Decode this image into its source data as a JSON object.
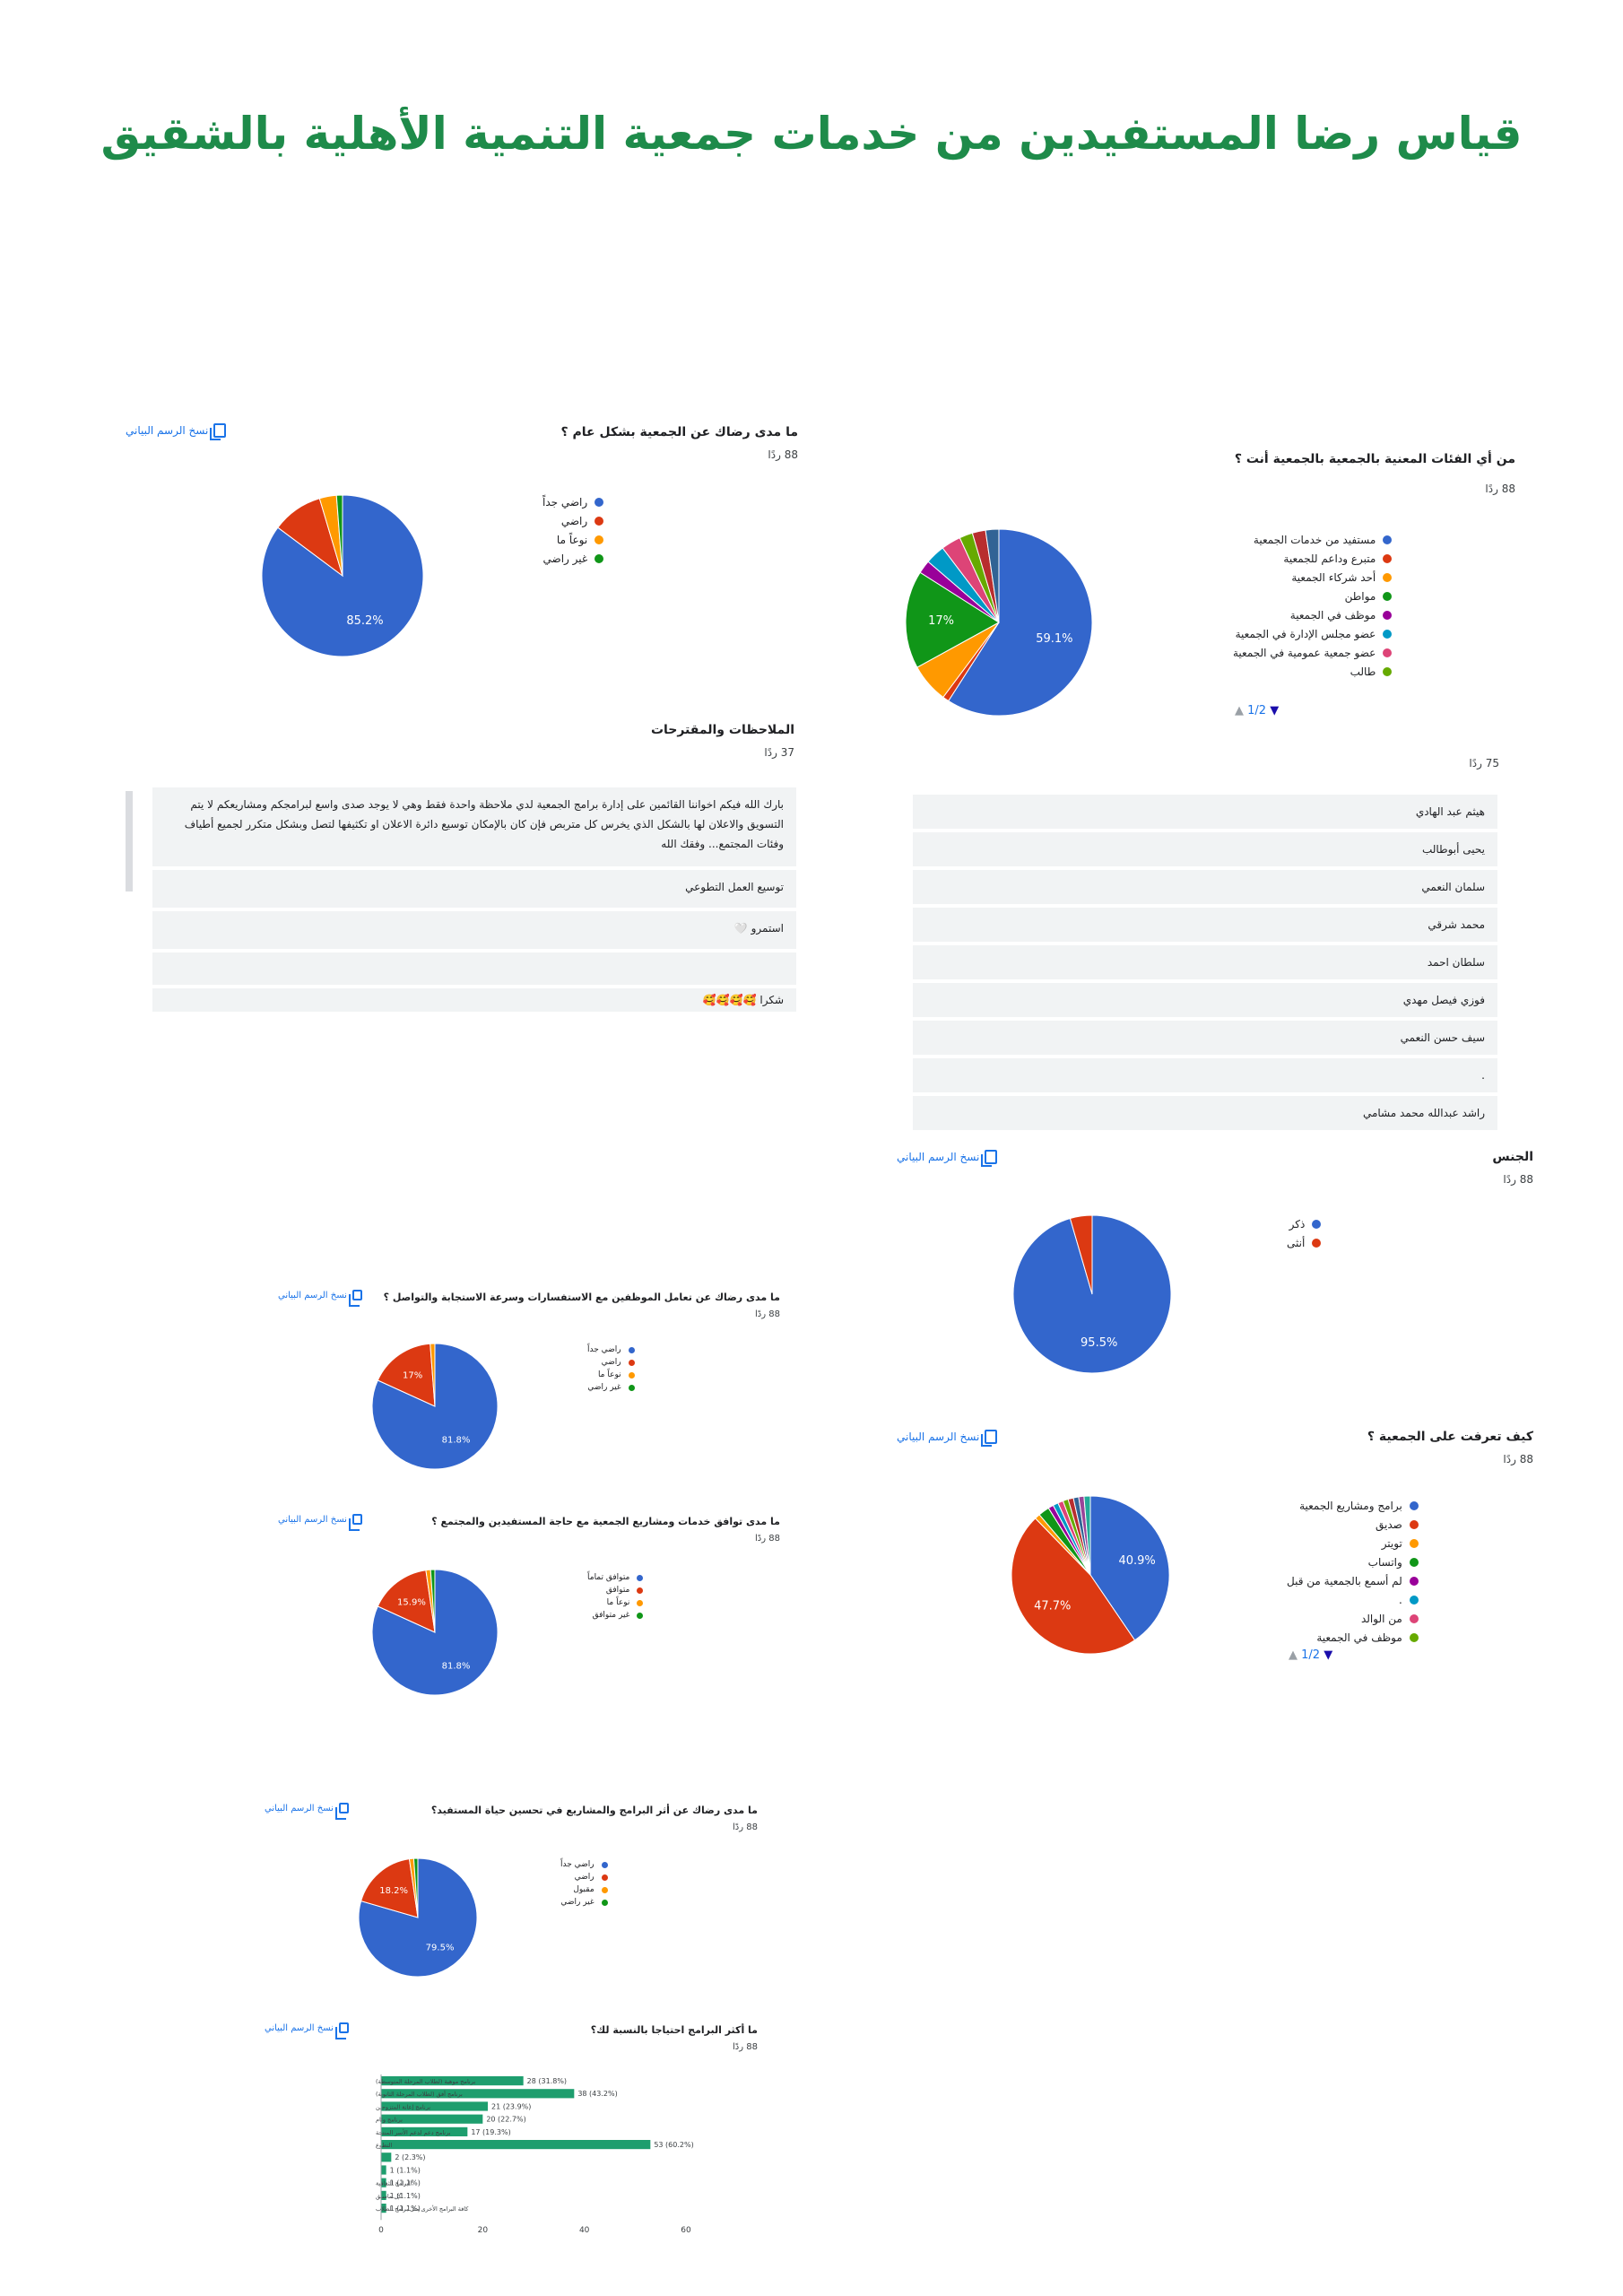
{
  "page": {
    "title": "قياس رضا المستفيدين من خدمات جمعية التنمية الأهلية بالشقيق",
    "copy_label": "نسخ الرسم البياني",
    "pager": "1/2"
  },
  "q1": {
    "question": "ما مدى رضاك عن الجمعية بشكل عام ؟",
    "responses": "88 ردًا",
    "chart_data": {
      "type": "pie",
      "categories": [
        "راضي جداً",
        "راضي",
        "نوعاً ما",
        "غير راضي"
      ],
      "values": [
        85.2,
        10.2,
        3.4,
        1.2
      ],
      "colors": [
        "#3366cc",
        "#dc3912",
        "#ff9900",
        "#109618"
      ],
      "labels": [
        "85.2%",
        "",
        "",
        ""
      ],
      "legend": "right"
    }
  },
  "q2": {
    "question": "من أي الفئات المعنية بالجمعية بالجمعية أنت ؟",
    "responses": "88 ردًا",
    "chart_data": {
      "type": "pie",
      "categories": [
        "مستفيد من خدمات الجمعية",
        "متبرع وداعم للجمعية",
        "أحد شركاء الجمعية",
        "مواطن",
        "موظف في الجمعية",
        "عضو مجلس الإدارة في الجمعية",
        "عضو جمعية عمومية في الجمعية",
        "طالب",
        "",
        ""
      ],
      "values": [
        59.1,
        1.1,
        6.8,
        17,
        2.3,
        3.4,
        3.4,
        2.3,
        2.3,
        2.3
      ],
      "colors": [
        "#3366cc",
        "#dc3912",
        "#ff9900",
        "#109618",
        "#990099",
        "#0099c6",
        "#dd4477",
        "#66aa00",
        "#b82e2e",
        "#316395"
      ],
      "labels": [
        "59.1%",
        "",
        "",
        "17%",
        "",
        "",
        "",
        "",
        "",
        ""
      ],
      "legend": "right"
    }
  },
  "q3": {
    "question": "الملاحظات والمقترحات",
    "responses": "37 ردًا",
    "answers": [
      "بارك الله فيكم اخواننا القائمين على إدارة برامج الجمعية لدي ملاحظة واحدة فقط وهي لا يوجد صدى واسع لبرامجكم ومشاريعكم لا يتم التسويق والاعلان لها بالشكل الذي يخرس كل متربص فإن كان بالإمكان توسيع دائرة الاعلان او تكثيفها لتصل وبشكل متكرر لجميع أطياف وفئات المجتمع... وفقك الله",
      "توسيع العمل التطوعي",
      "استمرو 🤍",
      "",
      "شكرا 🥰🥰🥰🥰"
    ]
  },
  "q4": {
    "responses": "75 ردًا",
    "answers": [
      "هيثم عبد الهادي",
      "يحيى أبوطالب",
      "سلمان النعمي",
      "محمد شرقي",
      "سلطان احمد",
      "فوزي فيصل مهدي",
      "سيف حسن النعمي",
      ".",
      "راشد عبدالله محمد مشامي"
    ]
  },
  "q5": {
    "question": "الجنس",
    "responses": "88 ردًا",
    "chart_data": {
      "type": "pie",
      "categories": [
        "ذكر",
        "أنثى"
      ],
      "values": [
        95.5,
        4.5
      ],
      "colors": [
        "#3366cc",
        "#dc3912"
      ],
      "labels": [
        "95.5%",
        ""
      ],
      "legend": "right"
    }
  },
  "q6": {
    "question": "ما مدى رضاك عن تعامل الموظفين مع الاستفسارات وسرعة الاستجابة والتواصل ؟",
    "responses": "88 ردًا",
    "chart_data": {
      "type": "pie",
      "categories": [
        "راضي جداً",
        "راضي",
        "نوعاً ما",
        "غير راضي"
      ],
      "values": [
        81.8,
        17,
        1.2,
        0
      ],
      "colors": [
        "#3366cc",
        "#dc3912",
        "#ff9900",
        "#109618"
      ],
      "labels": [
        "81.8%",
        "17%",
        "",
        ""
      ],
      "legend": "right"
    }
  },
  "q7": {
    "question": "كيف تعرفت على الجمعية ؟",
    "responses": "88 ردًا",
    "chart_data": {
      "type": "pie",
      "categories": [
        "برامج ومشاريع الجمعية",
        "صديق",
        "تويتر",
        "واتساب",
        "لم أسمع بالجمعية من قبل",
        ".",
        "من الوالد",
        "موظف في الجمعية",
        "",
        "",
        "",
        ""
      ],
      "values": [
        40.9,
        47.7,
        1.1,
        2.3,
        1.1,
        1.1,
        1.1,
        1.1,
        1.1,
        1.1,
        1.1,
        1.3
      ],
      "colors": [
        "#3366cc",
        "#dc3912",
        "#ff9900",
        "#109618",
        "#990099",
        "#0099c6",
        "#dd4477",
        "#66aa00",
        "#b82e2e",
        "#316395",
        "#994499",
        "#22aa99"
      ],
      "labels": [
        "40.9%",
        "47.7%",
        "",
        "",
        "",
        "",
        "",
        "",
        "",
        "",
        "",
        ""
      ],
      "legend": "right"
    }
  },
  "q8": {
    "question": "ما مدى توافق خدمات ومشاريع الجمعية مع حاجة المستفيدين والمجتمع ؟",
    "responses": "88 ردًا",
    "chart_data": {
      "type": "pie",
      "categories": [
        "متوافق تماماً",
        "متوافق",
        "نوعاً ما",
        "غير متوافق"
      ],
      "values": [
        81.8,
        15.9,
        1.2,
        1.1
      ],
      "colors": [
        "#3366cc",
        "#dc3912",
        "#ff9900",
        "#109618"
      ],
      "labels": [
        "81.8%",
        "15.9%",
        "",
        ""
      ],
      "legend": "right"
    }
  },
  "q9": {
    "question": "ما مدى رضاك عن أثر البرامج والمشاريع في تحسين حياة المستفيد؟",
    "responses": "88 ردًا",
    "chart_data": {
      "type": "pie",
      "categories": [
        "راضي جداً",
        "راضي",
        "مقبول",
        "غير راضي"
      ],
      "values": [
        79.5,
        18.2,
        1.2,
        1.1
      ],
      "colors": [
        "#3366cc",
        "#dc3912",
        "#ff9900",
        "#109618"
      ],
      "labels": [
        "79.5%",
        "18.2%",
        "",
        ""
      ],
      "legend": "right"
    }
  },
  "q10": {
    "question": "ما أكثر البرامج احتياجا بالنسبة لك؟",
    "responses": "88 ردًا",
    "chart_data": {
      "type": "bar",
      "orientation": "horizontal",
      "categories": [
        "برنامج موهبة (لطلاب المرحلة المتوسطة)",
        "برنامج أفق (لطلاب المرحلة الثانوية)",
        "برنامج إعانة المتزوجين",
        "برنامج وئام",
        "برنامج دعم لدعم الأسر المنتجة",
        "التطوع",
        "",
        "",
        "البرامج الثقافية",
        "كل ماسبق",
        "كافة البرامج الأخرى مثل برامج الطلاب"
      ],
      "values": [
        28,
        38,
        21,
        20,
        17,
        53,
        2,
        1,
        1,
        1,
        1
      ],
      "value_labels": [
        "28 (31.8%)",
        "38 (43.2%)",
        "21 (23.9%)",
        "20 (22.7%)",
        "17 (19.3%)",
        "53 (60.2%)",
        "2 (2.3%)",
        "1 (1.1%)",
        "1 (1.1%)",
        "1 (1.1%)",
        "1 (1.1%)"
      ],
      "xlim": [
        0,
        60
      ],
      "ticks": [
        "0",
        "20",
        "40",
        "60"
      ],
      "color": "#1e9e6e"
    }
  }
}
